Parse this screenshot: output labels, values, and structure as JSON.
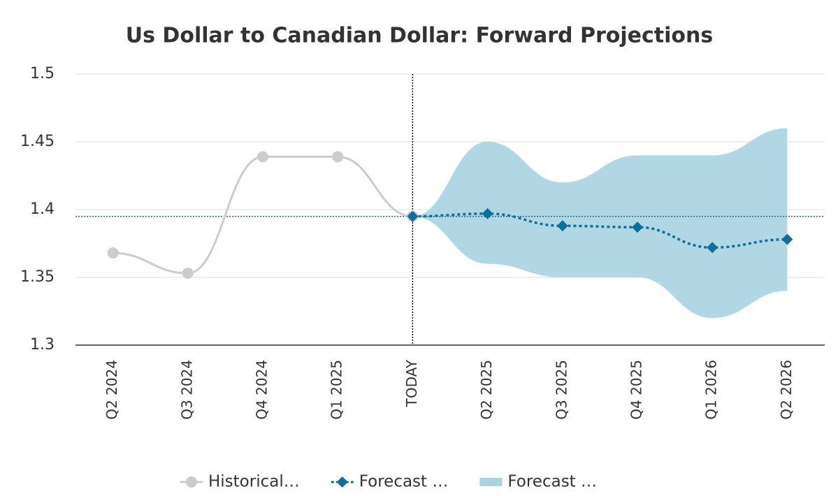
{
  "chart_data": {
    "type": "line",
    "title": "Us Dollar to Canadian Dollar: Forward Projections",
    "categories": [
      "Q2 2024",
      "Q3 2024",
      "Q4 2024",
      "Q1 2025",
      "TODAY",
      "Q2 2025",
      "Q3 2025",
      "Q4 2025",
      "Q1 2026",
      "Q2 2026"
    ],
    "series": [
      {
        "name": "Historical…",
        "color": "#cccccc",
        "marker": "circle",
        "values": [
          1.368,
          1.353,
          1.439,
          1.439,
          1.395,
          null,
          null,
          null,
          null,
          null
        ]
      },
      {
        "name": "Forecast …",
        "color": "#0e7098",
        "marker": "diamond",
        "dash": true,
        "values": [
          null,
          null,
          null,
          null,
          1.395,
          1.397,
          1.388,
          1.387,
          1.372,
          1.378
        ]
      },
      {
        "name": "Forecast …",
        "color": "#a9d3e2",
        "type": "range",
        "lower": [
          null,
          null,
          null,
          null,
          1.395,
          1.36,
          1.35,
          1.35,
          1.32,
          1.34
        ],
        "upper": [
          null,
          null,
          null,
          null,
          1.395,
          1.45,
          1.42,
          1.44,
          1.44,
          1.46
        ]
      }
    ],
    "reference_value": 1.395,
    "ylim": [
      1.3,
      1.5
    ],
    "yticks": [
      1.3,
      1.35,
      1.4,
      1.45,
      1.5
    ],
    "grid": true
  }
}
